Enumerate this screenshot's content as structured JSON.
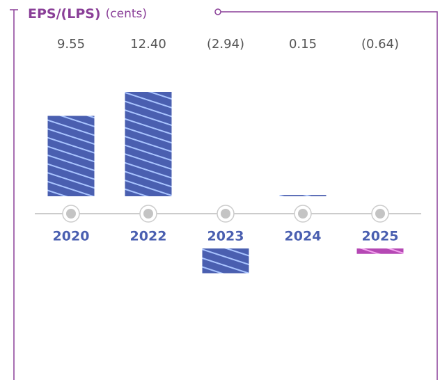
{
  "chart_data": {
    "type": "bar",
    "title": "EPS/(LPS)",
    "subtitle": "(cents)",
    "categories": [
      "2020",
      "2022",
      "2023",
      "2024",
      "2025"
    ],
    "values": [
      9.55,
      12.4,
      -2.94,
      0.15,
      -0.64
    ],
    "value_labels": [
      "9.55",
      "12.40",
      "(2.94)",
      "0.15",
      "(0.64)"
    ],
    "colors": [
      "#4a5fb0",
      "#4a5fb0",
      "#4a5fb0",
      "#4a5fb0",
      "#b548b4"
    ]
  }
}
